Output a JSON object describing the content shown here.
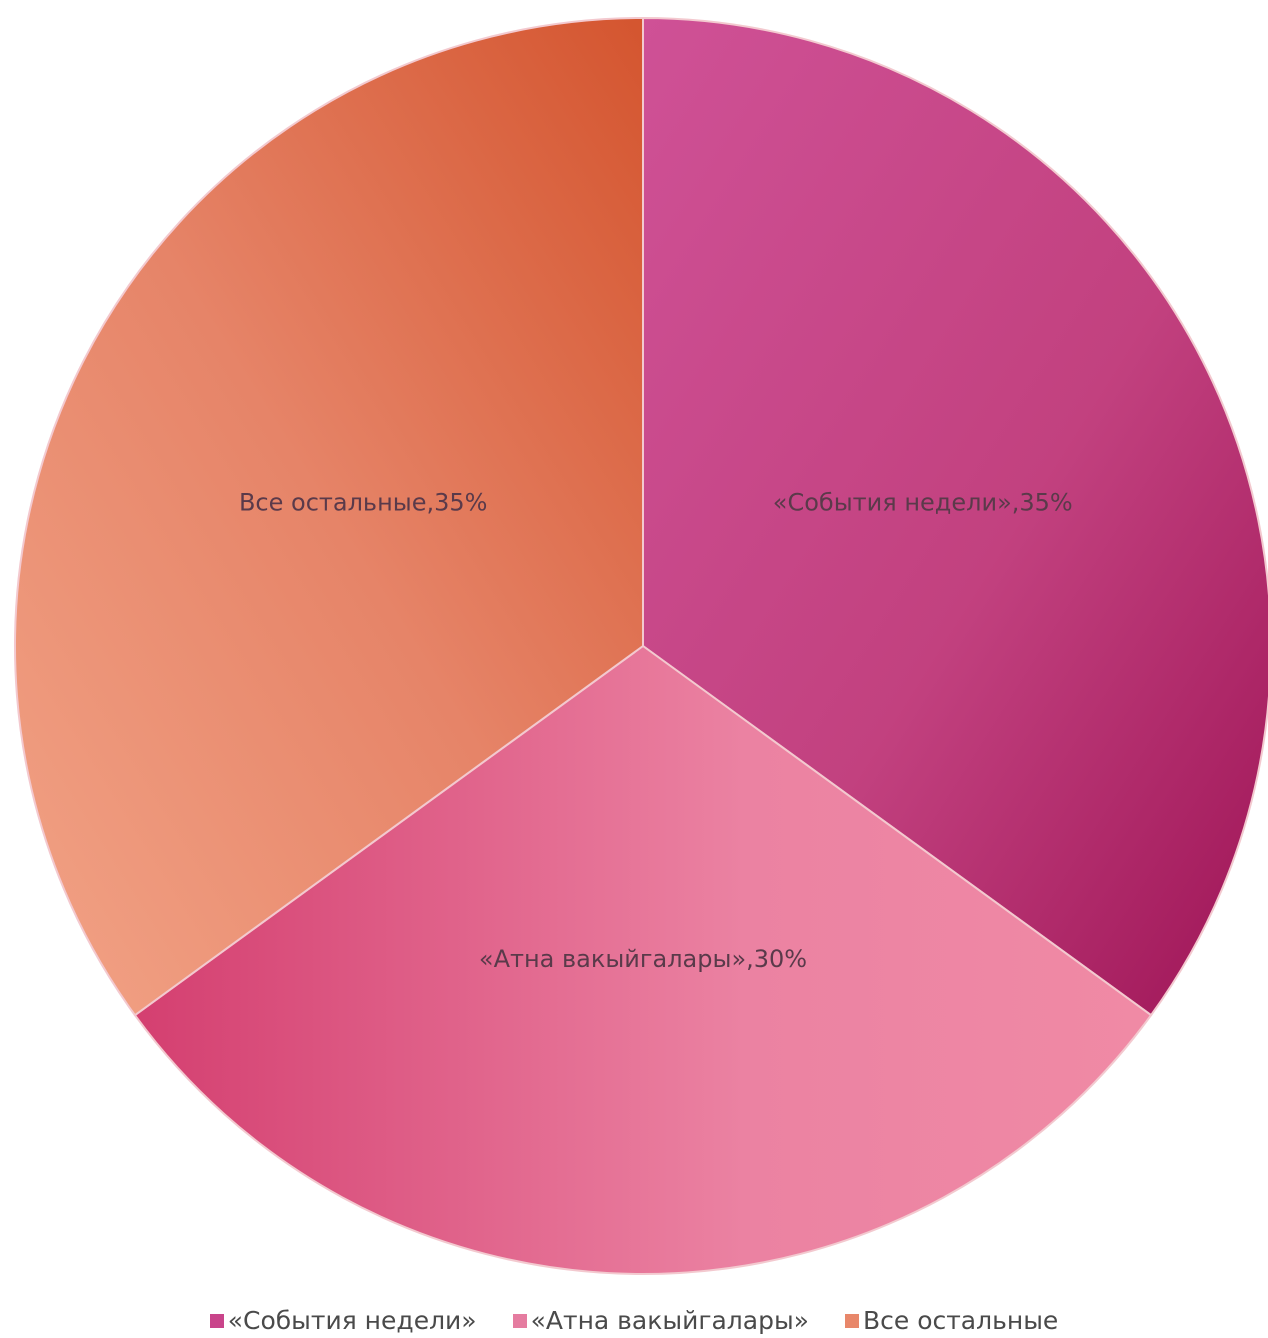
{
  "chart_data": {
    "type": "pie",
    "title": "",
    "slices": [
      {
        "label": "«События недели»",
        "value": 35,
        "data_label": "«События недели»,35%",
        "color": "#c9448a"
      },
      {
        "label": "«Атна вакыйгалары»",
        "value": 30,
        "data_label": "«Атна вакыйгалары»,30%",
        "color": "#e57ca0"
      },
      {
        "label": "Все остальные",
        "value": 35,
        "data_label": "Все остальные,35%",
        "color": "#e8876a"
      }
    ],
    "legend_position": "bottom",
    "start_angle_deg": 0,
    "direction": "clockwise"
  }
}
